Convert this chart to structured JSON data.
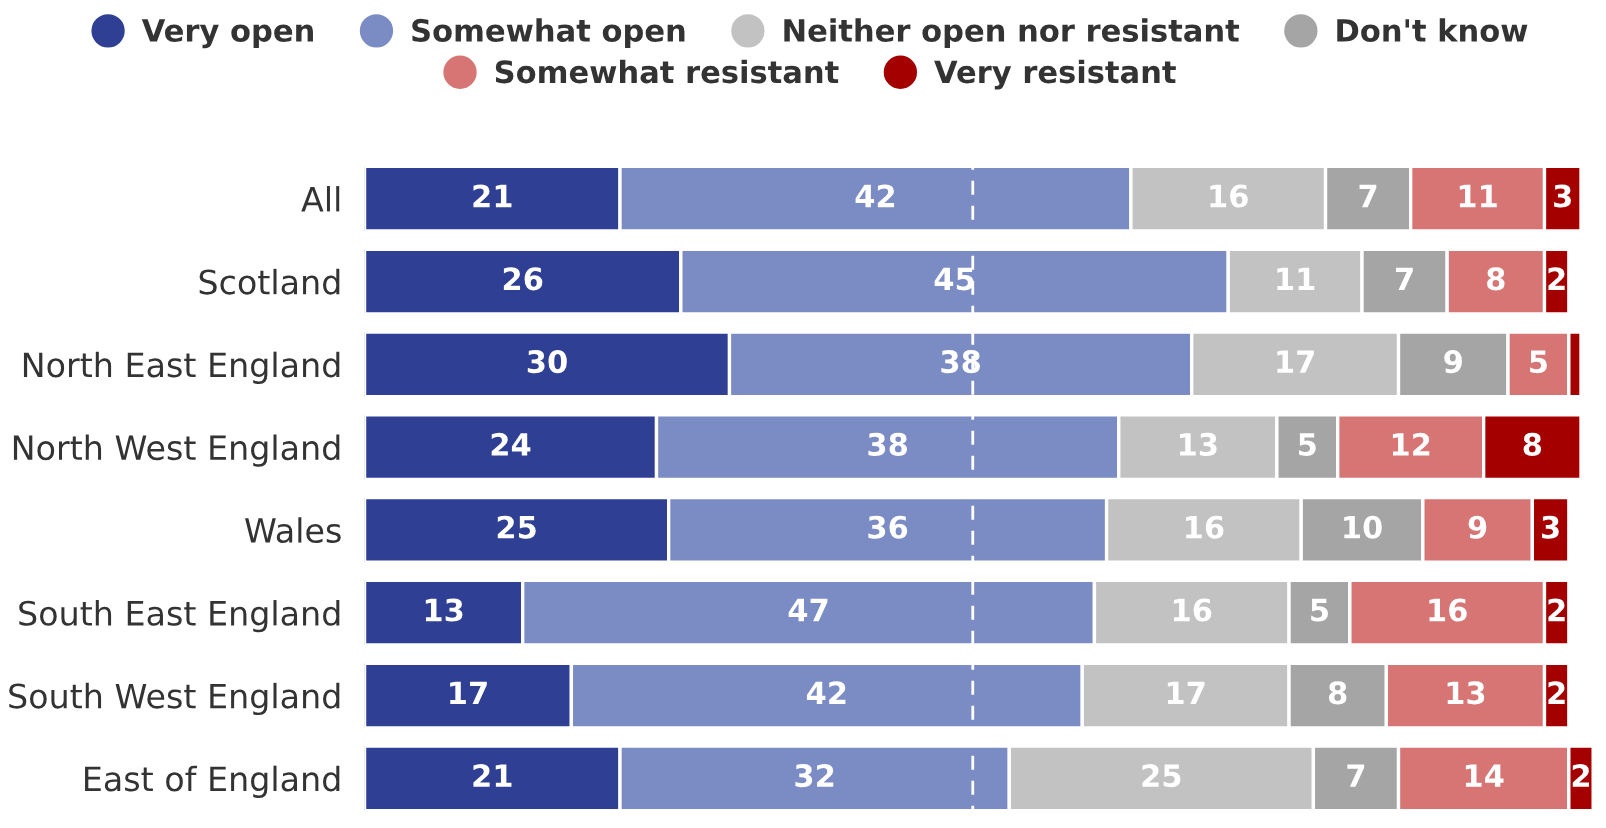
{
  "chart_data": {
    "type": "bar",
    "orientation": "horizontal",
    "stacked": true,
    "data_labels": true,
    "legend": "top",
    "grid": false,
    "categories": [
      "All",
      "Scotland",
      "North East England",
      "North West England",
      "Wales",
      "South East England",
      "South West England",
      "East of England"
    ],
    "series": [
      {
        "name": "Very open",
        "color": "#2e3f94",
        "values": [
          21,
          26,
          30,
          24,
          25,
          13,
          17,
          21
        ]
      },
      {
        "name": "Somewhat open",
        "color": "#7b8bc4",
        "values": [
          42,
          45,
          38,
          38,
          36,
          47,
          42,
          32
        ]
      },
      {
        "name": "Neither open nor resistant",
        "color": "#c2c2c2",
        "values": [
          16,
          11,
          17,
          13,
          16,
          16,
          17,
          25
        ]
      },
      {
        "name": "Don't know",
        "color": "#a5a5a5",
        "values": [
          7,
          7,
          9,
          5,
          10,
          5,
          8,
          7
        ]
      },
      {
        "name": "Somewhat resistant",
        "color": "#d77474",
        "values": [
          11,
          8,
          5,
          12,
          9,
          16,
          13,
          14
        ]
      },
      {
        "name": "Very resistant",
        "color": "#a50000",
        "values": [
          3,
          2,
          1,
          8,
          3,
          2,
          2,
          2
        ],
        "value_labels": [
          "3",
          "2",
          null,
          "8",
          "3",
          "2",
          "2",
          "2"
        ]
      }
    ],
    "ref_lines": [
      {
        "axis": "x",
        "value": 50,
        "color": "#ffffff",
        "line_style": "dashed"
      }
    ]
  }
}
